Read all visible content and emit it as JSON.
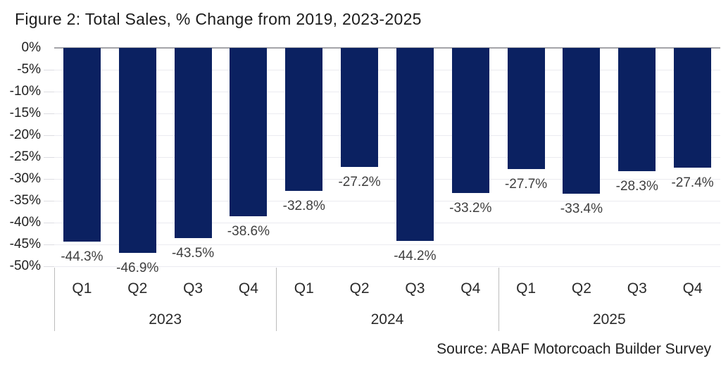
{
  "title": "Figure 2: Total Sales, % Change from 2019, 2023-2025",
  "source": "Source: ABAF Motorcoach Builder Survey",
  "chart_data": {
    "type": "bar",
    "title": "Figure 2: Total Sales, % Change from 2019, 2023-2025",
    "ylim": [
      -50,
      0
    ],
    "y_ticks": [
      "0%",
      "-5%",
      "-10%",
      "-15%",
      "-20%",
      "-25%",
      "-30%",
      "-35%",
      "-40%",
      "-45%",
      "-50%"
    ],
    "grid": true,
    "legend": false,
    "bar_color": "#0b2161",
    "gridline_color": "#ebebf0",
    "zero_line_color": "#a4a4a9",
    "groups": [
      {
        "year": "2023",
        "quarters": [
          "Q1",
          "Q2",
          "Q3",
          "Q4"
        ],
        "values": [
          -44.3,
          -46.9,
          -43.5,
          -38.6
        ],
        "labels": [
          "-44.3%",
          "-46.9%",
          "-43.5%",
          "-38.6%"
        ]
      },
      {
        "year": "2024",
        "quarters": [
          "Q1",
          "Q2",
          "Q3",
          "Q4"
        ],
        "values": [
          -32.8,
          -27.2,
          -44.2,
          -33.2
        ],
        "labels": [
          "-32.8%",
          "-27.2%",
          "-44.2%",
          "-33.2%"
        ]
      },
      {
        "year": "2025",
        "quarters": [
          "Q1",
          "Q2",
          "Q3",
          "Q4"
        ],
        "values": [
          -27.7,
          -33.4,
          -28.3,
          -27.4
        ],
        "labels": [
          "-27.7%",
          "-33.4%",
          "-28.3%",
          "-27.4%"
        ]
      }
    ]
  }
}
